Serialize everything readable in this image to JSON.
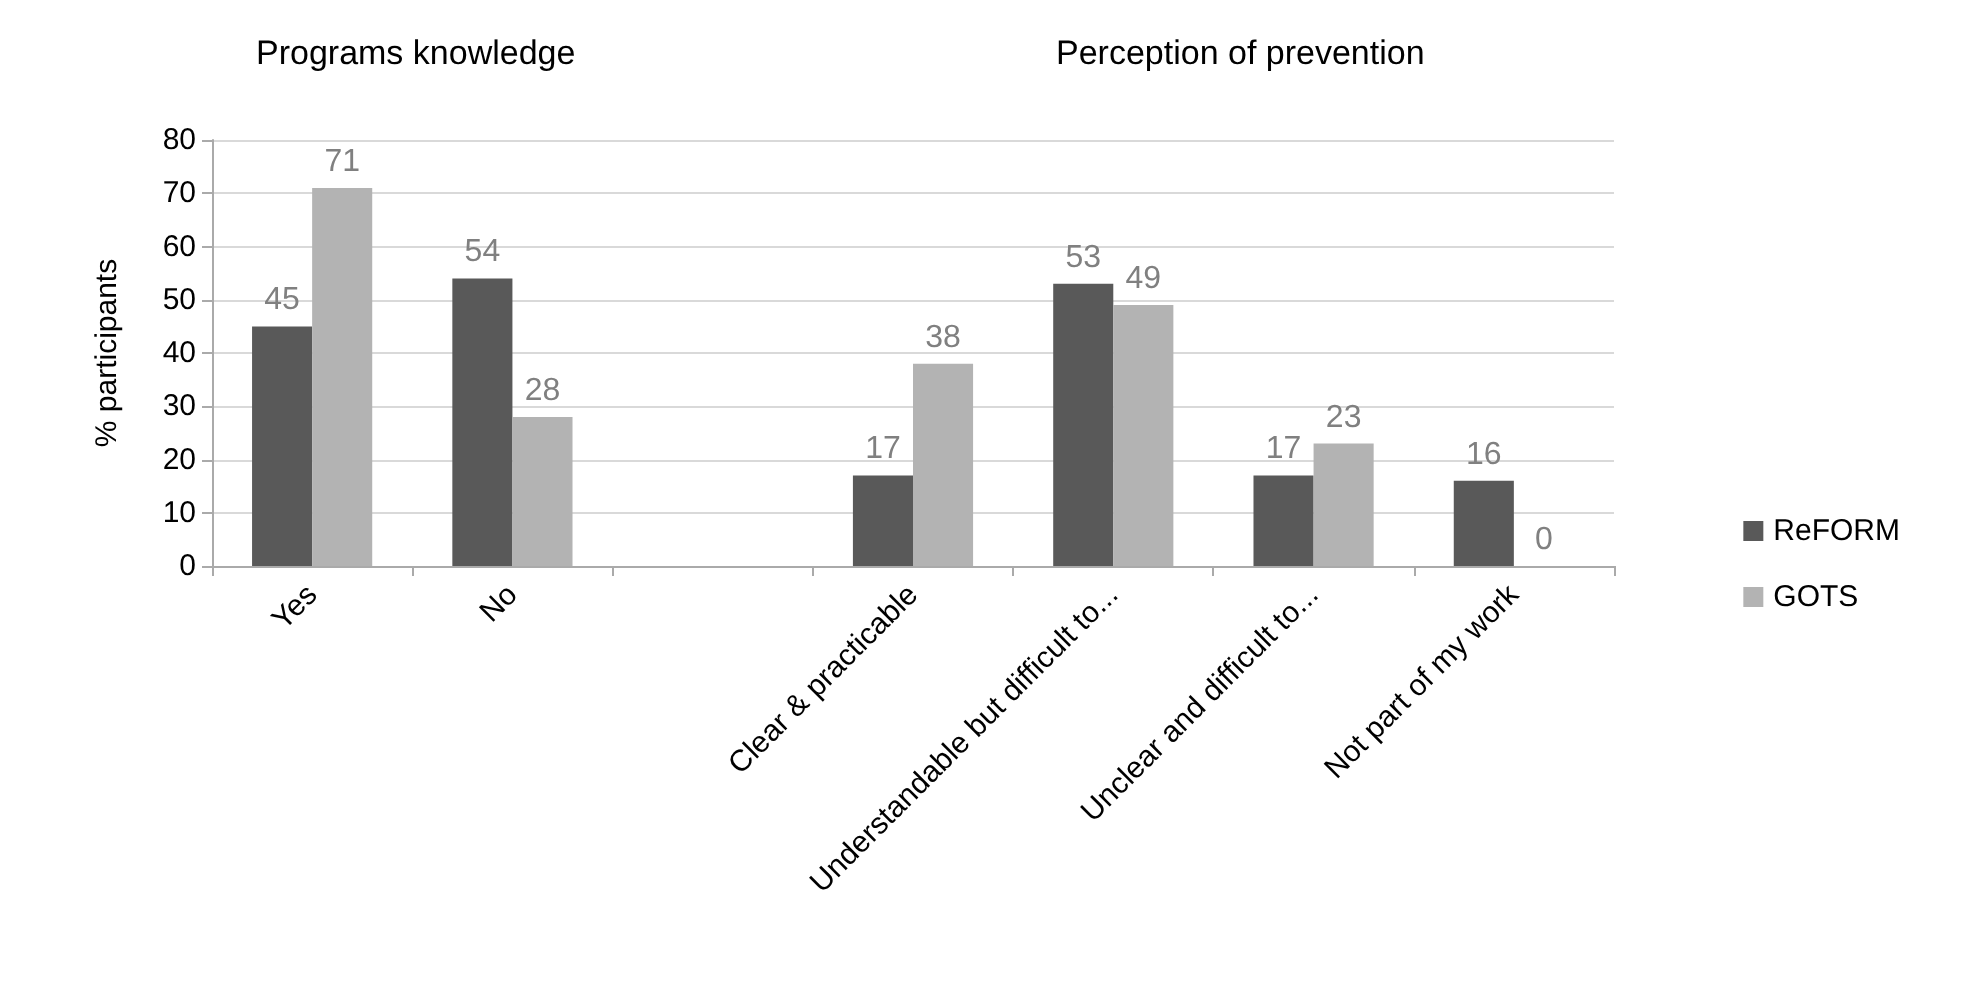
{
  "chart_data": {
    "type": "bar",
    "ylabel": "% participants",
    "annotations": [
      "Programs knowledge",
      "Perception of prevention"
    ],
    "categories": [
      "Yes",
      "No",
      null,
      "Clear & practicable",
      "Understandable but difficult to...",
      "Unclear and difficult to...",
      "Not part of my work"
    ],
    "series": [
      {
        "name": "ReFORM",
        "color": "#595959",
        "values": [
          45,
          54,
          null,
          17,
          53,
          17,
          16
        ]
      },
      {
        "name": "GOTS",
        "color": "#b3b3b3",
        "values": [
          71,
          28,
          null,
          38,
          49,
          23,
          0
        ]
      }
    ],
    "ylim": [
      0,
      80
    ],
    "yticks": [
      0,
      10,
      20,
      30,
      40,
      50,
      60,
      70,
      80
    ],
    "grid": "y",
    "legend": "right",
    "data_labels": true
  }
}
